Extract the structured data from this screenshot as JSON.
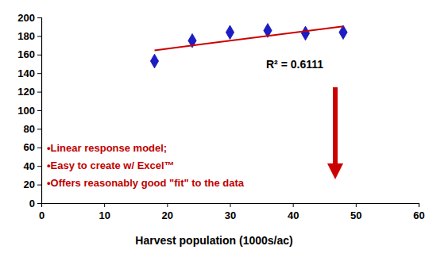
{
  "chart_data": {
    "type": "scatter",
    "xlabel": "Harvest population (1000s/ac)",
    "xlim": [
      0,
      60
    ],
    "xticks": [
      0,
      10,
      20,
      30,
      40,
      50,
      60
    ],
    "ylim": [
      0,
      200
    ],
    "yticks": [
      0,
      20,
      40,
      60,
      80,
      100,
      120,
      140,
      160,
      180,
      200
    ],
    "grid": false,
    "series": [
      {
        "type": "scatter",
        "color": "#1c1cc8",
        "marker": "diamond",
        "x": [
          18,
          24,
          30,
          36,
          42,
          48
        ],
        "values": [
          153,
          175,
          184,
          186,
          183,
          184
        ]
      },
      {
        "type": "line",
        "color": "#cc0000",
        "line_style": "solid",
        "x": [
          18,
          48
        ],
        "values": [
          164.6,
          190.4
        ]
      }
    ],
    "annotations": [
      "R² = 0.6111",
      "•Linear response model;",
      "•Easy to create w/ Excel™",
      "•Offers reasonably good \"fit\" to the data"
    ]
  }
}
